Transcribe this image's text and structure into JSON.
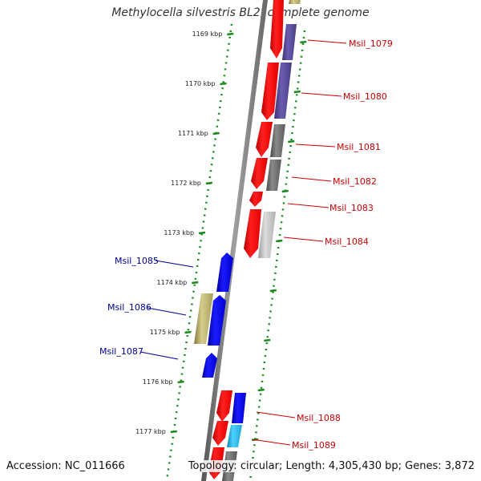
{
  "title": "Methylocella silvestris BL2, complete genome",
  "accession": {
    "label": "Accession:",
    "value": "NC_011666"
  },
  "topology": {
    "label": "Topology:",
    "value": "circular"
  },
  "length": {
    "label": "Length:",
    "value": "4,305,430 bp"
  },
  "genes": {
    "label": "Genes:",
    "value": "3,872"
  },
  "colors": {
    "backbone": "#7f7f7f",
    "tick": "#1a8a1a",
    "forward_gene": "#ff0000",
    "reverse_gene": "#0000ee",
    "label_forward": "#cc0000",
    "label_reverse": "#000099",
    "cog_purple": "#55468f",
    "cog_gray": "#6e6e6e",
    "cog_lightgray": "#bdbdbd",
    "cog_khaki": "#b7ad6a",
    "cog_blue": "#0000ee",
    "cog_cyan": "#22bbee"
  },
  "ticks": [
    "1169 kbp",
    "1170 kbp",
    "1171 kbp",
    "1172 kbp",
    "1173 kbp",
    "1174 kbp",
    "1175 kbp",
    "1176 kbp",
    "1177 kbp"
  ],
  "gene_labels": [
    {
      "id": "Msil_1079",
      "strand": "forward"
    },
    {
      "id": "Msil_1080",
      "strand": "forward"
    },
    {
      "id": "Msil_1081",
      "strand": "forward"
    },
    {
      "id": "Msil_1082",
      "strand": "forward"
    },
    {
      "id": "Msil_1083",
      "strand": "forward"
    },
    {
      "id": "Msil_1084",
      "strand": "forward"
    },
    {
      "id": "Msil_1085",
      "strand": "reverse"
    },
    {
      "id": "Msil_1086",
      "strand": "reverse"
    },
    {
      "id": "Msil_1087",
      "strand": "reverse"
    },
    {
      "id": "Msil_1088",
      "strand": "forward"
    },
    {
      "id": "Msil_1089",
      "strand": "forward"
    }
  ]
}
